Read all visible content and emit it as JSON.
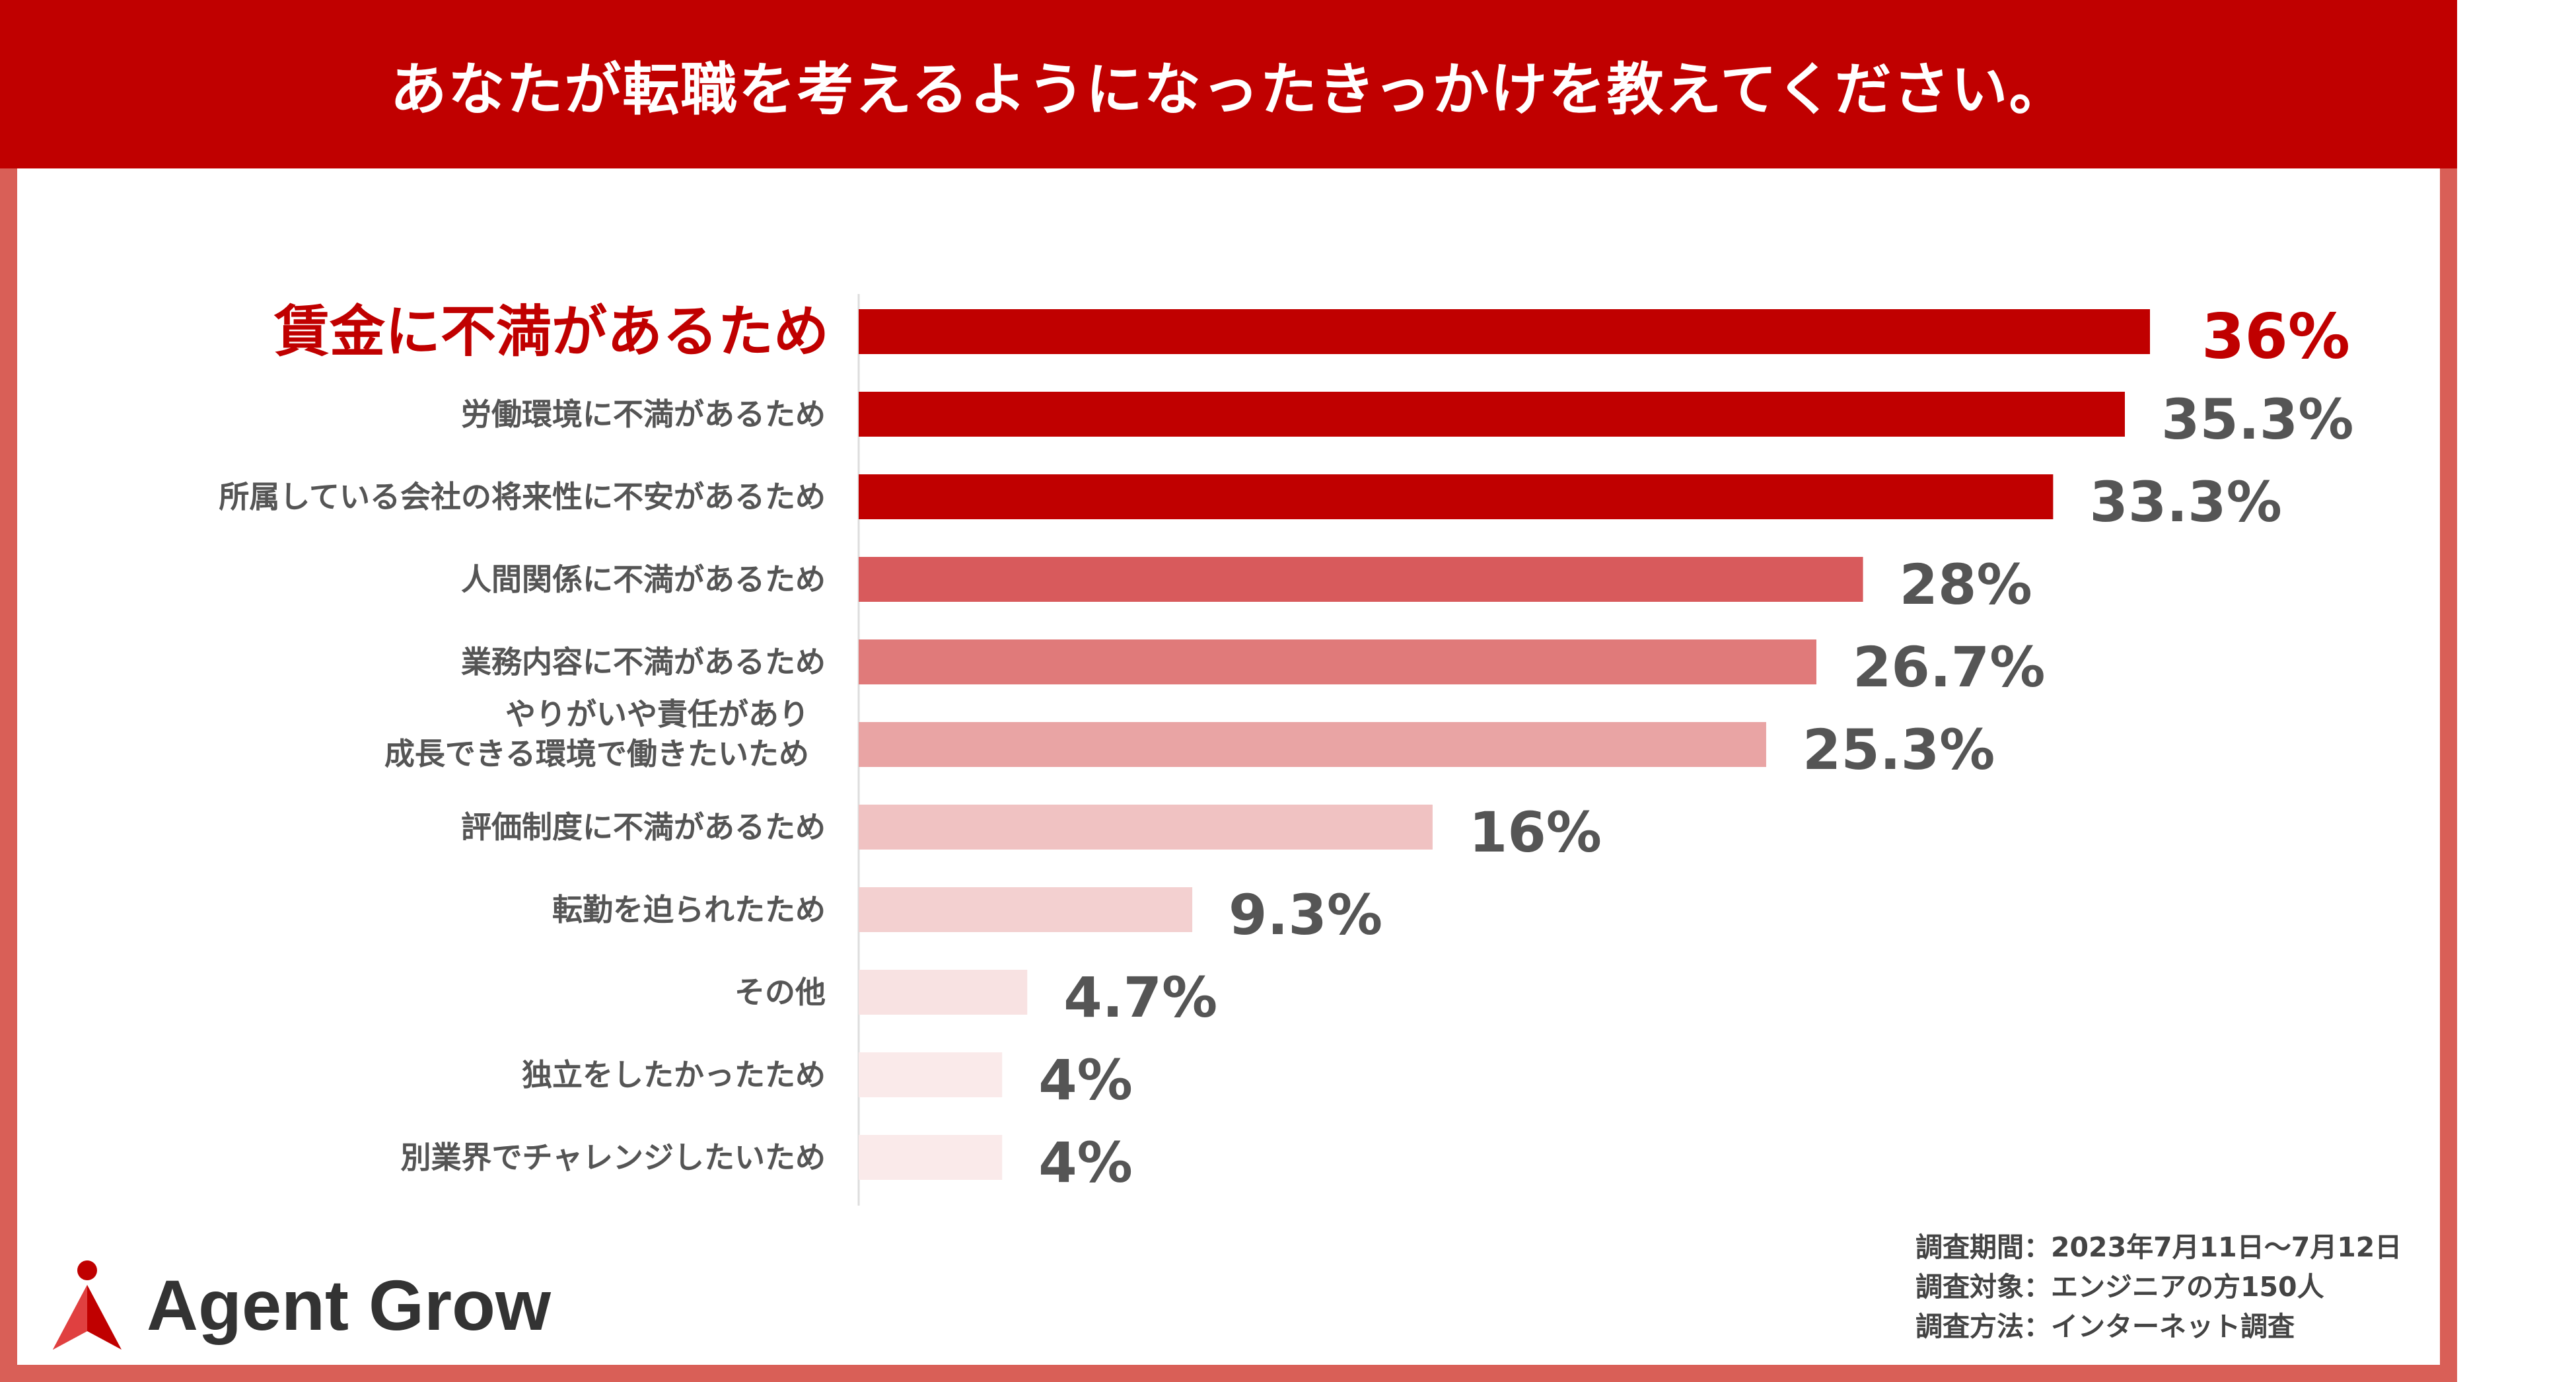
{
  "title": "あなたが転職を考えるようになったきっかけを教えてください。",
  "chart_data": {
    "type": "bar",
    "orientation": "horizontal",
    "title": "あなたが転職を考えるようになったきっかけを教えてください。",
    "categories": [
      "賃金に不満があるため",
      "労働環境に不満があるため",
      "所属している会社の将来性に不安があるため",
      "人間関係に不満があるため",
      "業務内容に不満があるため",
      "やりがいや責任があり\n成長できる環境で働きたいため",
      "評価制度に不満があるため",
      "転勤を迫られたため",
      "その他",
      "独立をしたかったため",
      "別業界でチャレンジしたいため"
    ],
    "values": [
      36,
      35.3,
      33.3,
      28,
      26.7,
      25.3,
      16,
      9.3,
      4.7,
      4,
      4
    ],
    "value_labels": [
      "36%",
      "35.3%",
      "33.3%",
      "28%",
      "26.7%",
      "25.3%",
      "16%",
      "9.3%",
      "4.7%",
      "4%",
      "4%"
    ],
    "bar_colors": [
      "#c00000",
      "#c00000",
      "#c00000",
      "#d85a5c",
      "#e07a7a",
      "#e9a4a4",
      "#f0c2c2",
      "#f3d0d0",
      "#f8e2e2",
      "#faeaea",
      "#faeaea"
    ],
    "highlight_index": 0,
    "xlim": [
      0,
      36
    ],
    "grid": false,
    "legend": "none"
  },
  "survey": {
    "lines": [
      "調査期間：2023年7月11日〜7月12日",
      "調査対象：エンジニアの方150人",
      "調査方法：インターネット調査"
    ]
  },
  "brand": {
    "name": "Agent Grow",
    "accent_color": "#c00000",
    "icon": "agent-grow-logo-icon"
  }
}
